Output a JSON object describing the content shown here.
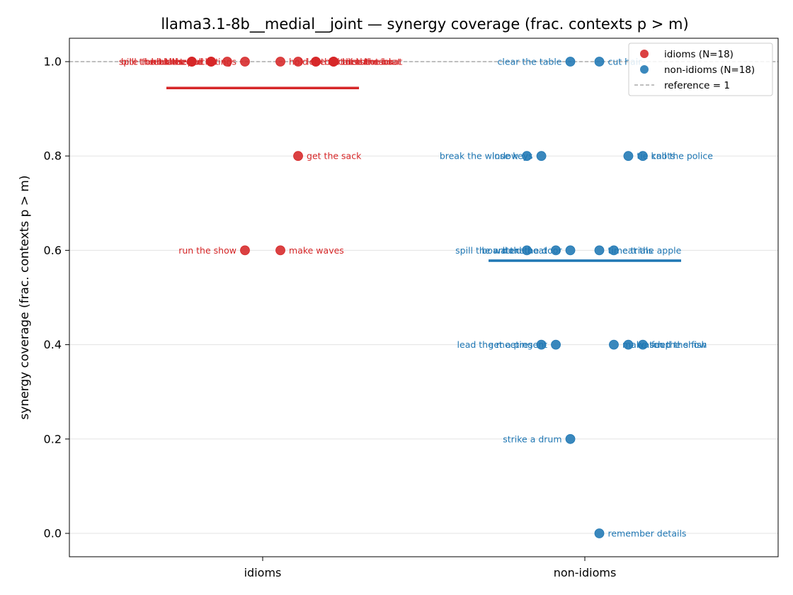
{
  "chart_data": {
    "type": "scatter",
    "title": "llama3.1-8b__medial__joint — synergy coverage  (frac. contexts p > m)",
    "ylabel": "synergy coverage  (frac. contexts p > m)",
    "xlabel": "",
    "categories": [
      "idioms",
      "non-idioms"
    ],
    "ylim": [
      -0.05,
      1.05
    ],
    "yticks": [
      "0.0",
      "0.2",
      "0.4",
      "0.6",
      "0.8",
      "1.0"
    ],
    "grid": "horizontal",
    "reference": {
      "value": 1,
      "label": "reference = 1"
    },
    "legend_position": "top-right",
    "series": [
      {
        "name": "idioms (N=18)",
        "color": "#d62728",
        "mean": 0.944,
        "points": [
          {
            "jitter": -0.22,
            "y": 1.0,
            "label": "spill the beans"
          },
          {
            "jitter": -0.22,
            "y": 1.0,
            "label": "bite the bullet"
          },
          {
            "jitter": -0.16,
            "y": 1.0,
            "label": "break the ice"
          },
          {
            "jitter": -0.16,
            "y": 1.0,
            "label": "hit the road"
          },
          {
            "jitter": -0.11,
            "y": 1.0,
            "label": "kick the bucket"
          },
          {
            "jitter": -0.055,
            "y": 1.0,
            "label": "pull strings"
          },
          {
            "jitter": 0.055,
            "y": 1.0,
            "label": "hold the fort"
          },
          {
            "jitter": 0.11,
            "y": 1.0,
            "label": "let the cat out"
          },
          {
            "jitter": 0.165,
            "y": 1.0,
            "label": "call the shots"
          },
          {
            "jitter": 0.22,
            "y": 1.0,
            "label": "hit the sack"
          },
          {
            "jitter": 0.22,
            "y": 1.0,
            "label": "miss the boat"
          },
          {
            "jitter": 0.22,
            "y": 1.0,
            "label": "rock the boat"
          },
          {
            "jitter": -0.22,
            "y": 1.0,
            "label": ""
          },
          {
            "jitter": -0.16,
            "y": 1.0,
            "label": ""
          },
          {
            "jitter": 0.165,
            "y": 1.0,
            "label": ""
          },
          {
            "jitter": 0.11,
            "y": 0.8,
            "label": "get the sack"
          },
          {
            "jitter": -0.055,
            "y": 0.6,
            "label": "run the show"
          },
          {
            "jitter": 0.055,
            "y": 0.6,
            "label": "make waves"
          }
        ]
      },
      {
        "name": "non-idioms (N=18)",
        "color": "#1f77b4",
        "mean": 0.578,
        "points": [
          {
            "jitter": -0.045,
            "y": 1.0,
            "label": "clear the table"
          },
          {
            "jitter": 0.045,
            "y": 1.0,
            "label": "cut hair"
          },
          {
            "jitter": -0.18,
            "y": 0.8,
            "label": "break the window"
          },
          {
            "jitter": -0.135,
            "y": 0.8,
            "label": "lose keys"
          },
          {
            "jitter": 0.135,
            "y": 0.8,
            "label": "tie knots"
          },
          {
            "jitter": 0.18,
            "y": 0.8,
            "label": "call the police"
          },
          {
            "jitter": -0.18,
            "y": 0.6,
            "label": "spill the water"
          },
          {
            "jitter": -0.09,
            "y": 0.6,
            "label": "board the boat"
          },
          {
            "jitter": -0.045,
            "y": 0.6,
            "label": "hold the door"
          },
          {
            "jitter": 0.045,
            "y": 0.6,
            "label": "time trials"
          },
          {
            "jitter": 0.09,
            "y": 0.6,
            "label": "eat the apple"
          },
          {
            "jitter": -0.135,
            "y": 0.4,
            "label": "lead the meeting"
          },
          {
            "jitter": -0.09,
            "y": 0.4,
            "label": "get a present"
          },
          {
            "jitter": 0.09,
            "y": 0.4,
            "label": "make soup"
          },
          {
            "jitter": 0.135,
            "y": 0.4,
            "label": "watch the show"
          },
          {
            "jitter": 0.18,
            "y": 0.4,
            "label": "feed the fish"
          },
          {
            "jitter": -0.045,
            "y": 0.2,
            "label": "strike a drum"
          },
          {
            "jitter": 0.045,
            "y": 0.0,
            "label": "remember details"
          }
        ]
      }
    ]
  }
}
